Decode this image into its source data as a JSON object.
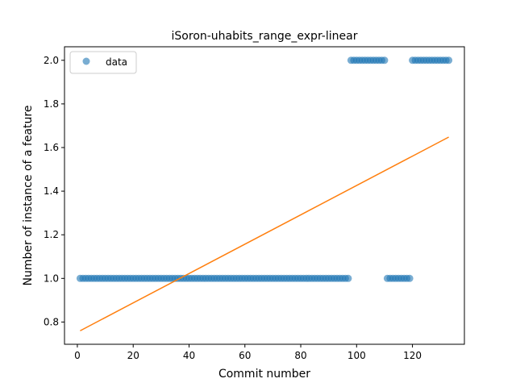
{
  "chart_data": {
    "type": "scatter",
    "title": "iSoron-uhabits_range_expr-linear",
    "xlabel": "Commit number",
    "ylabel": "Number of instance of a feature",
    "xlim": [
      -4.6,
      138.6
    ],
    "ylim": [
      0.698,
      2.062
    ],
    "xticks": [
      0,
      20,
      40,
      60,
      80,
      100,
      120
    ],
    "yticks": [
      0.8,
      1.0,
      1.2,
      1.4,
      1.6,
      1.8,
      2.0
    ],
    "ytick_labels": [
      "0.8",
      "1.0",
      "1.2",
      "1.4",
      "1.6",
      "1.8",
      "2.0"
    ],
    "grid": false,
    "legend": {
      "position": "top-left",
      "entries": [
        "data"
      ]
    },
    "series": [
      {
        "name": "data",
        "kind": "scatter",
        "color": "#1f77b4",
        "segments": [
          {
            "x_from": 1,
            "x_to": 97,
            "y": 1.0
          },
          {
            "x_from": 98,
            "x_to": 110,
            "y": 2.0
          },
          {
            "x_from": 111,
            "x_to": 119,
            "y": 1.0
          },
          {
            "x_from": 120,
            "x_to": 133,
            "y": 2.0
          }
        ]
      },
      {
        "kind": "line",
        "color": "#ff7f0e",
        "x": [
          1,
          133
        ],
        "y": [
          0.76,
          1.648
        ]
      }
    ]
  }
}
